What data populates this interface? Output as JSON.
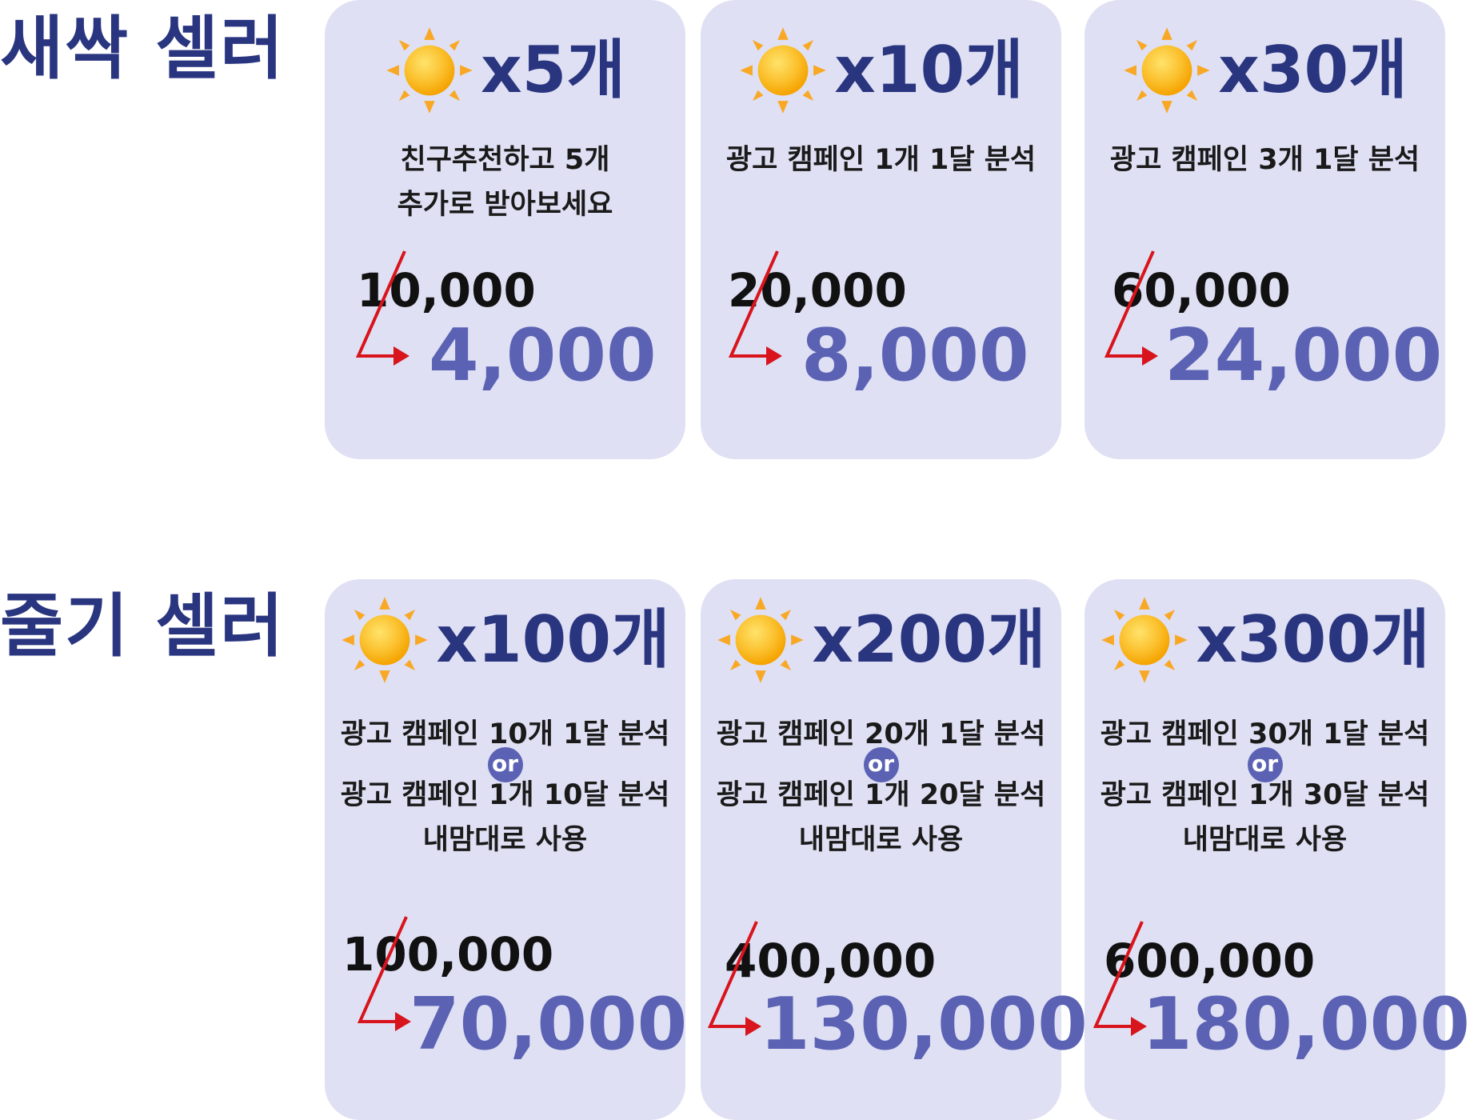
{
  "tiers": [
    {
      "title": "새싹 셀러",
      "cards": [
        {
          "qty": "x5개",
          "desc": [
            "친구추천하고 5개",
            "추가로 받아보세요"
          ],
          "old_price": "10,000",
          "new_price": "4,000"
        },
        {
          "qty": "x10개",
          "desc": [
            "광고 캠페인 1개 1달 분석"
          ],
          "old_price": "20,000",
          "new_price": "8,000"
        },
        {
          "qty": "x30개",
          "desc": [
            "광고 캠페인 3개 1달 분석"
          ],
          "old_price": "60,000",
          "new_price": "24,000"
        }
      ]
    },
    {
      "title": "줄기 셀러",
      "cards": [
        {
          "qty": "x100개",
          "desc": [
            "광고 캠페인 10개 1달 분석",
            "광고 캠페인 1개 10달 분석",
            "내맘대로 사용"
          ],
          "or_label": "or",
          "old_price": "100,000",
          "new_price": "70,000"
        },
        {
          "qty": "x200개",
          "desc": [
            "광고 캠페인 20개 1달 분석",
            "광고 캠페인 1개 20달 분석",
            "내맘대로 사용"
          ],
          "or_label": "or",
          "old_price": "400,000",
          "new_price": "130,000"
        },
        {
          "qty": "x300개",
          "desc": [
            "광고 캠페인 30개 1달 분석",
            "광고 캠페인 1개 30달 분석",
            "내맘대로 사용"
          ],
          "or_label": "or",
          "old_price": "600,000",
          "new_price": "180,000"
        }
      ]
    }
  ],
  "icons": {
    "sun": "sun-icon",
    "arrow": "discount-arrow-icon"
  },
  "colors": {
    "title": "#2a3580",
    "card_background": "#dfe0f3",
    "discount_price": "#5b62b4",
    "strike_arrow": "#d8141c",
    "sun_core": "#fbc02d",
    "sun_rays": "#f9a825",
    "or_badge": "#5b62b4"
  }
}
